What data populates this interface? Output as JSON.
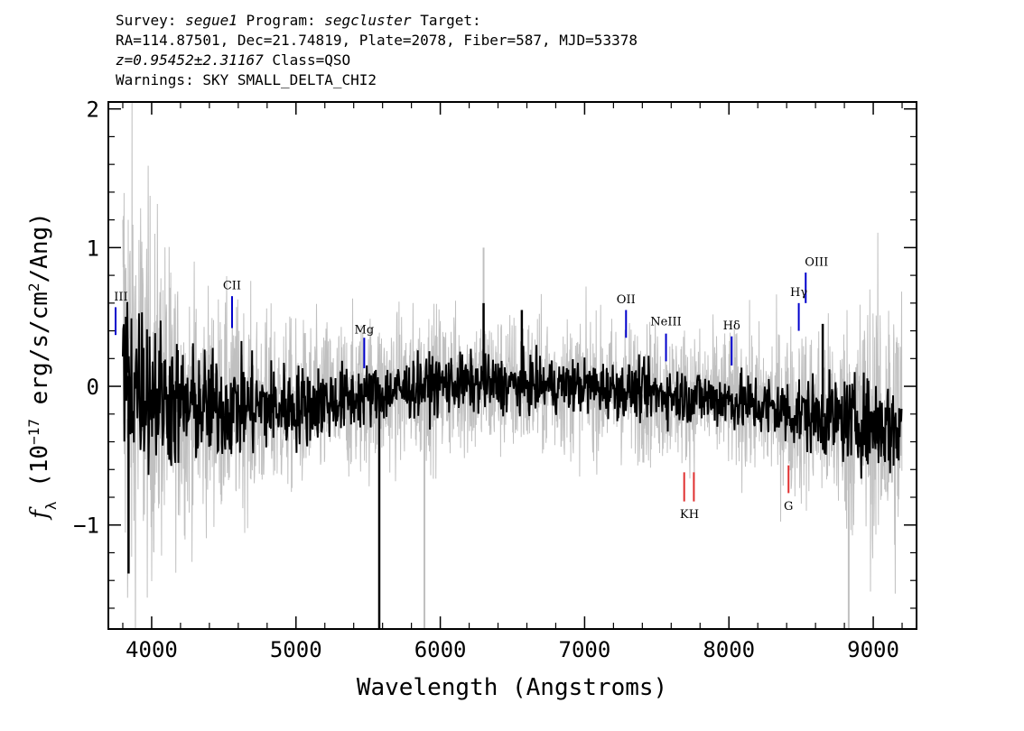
{
  "header": {
    "survey_label": "Survey:",
    "survey": "segue1",
    "program_label": "Program:",
    "program": "segcluster",
    "target_label": "Target:",
    "coords": "RA=114.87501, Dec=21.74819, Plate=2078, Fiber=587, MJD=53378",
    "redshift": "z=0.95452±2.31167",
    "class_text": "Class=QSO",
    "warnings": "Warnings: SKY SMALL_DELTA_CHI2"
  },
  "chart_data": {
    "type": "line",
    "xlabel": "Wavelength (Angstroms)",
    "ylabel": "f_λ (10^-17 erg/s/cm^2/Ang)",
    "xlim": [
      3700,
      9300
    ],
    "ylim": [
      -1.75,
      2.05
    ],
    "x_ticks": [
      4000,
      5000,
      6000,
      7000,
      8000,
      9000
    ],
    "y_ticks": [
      -1,
      0,
      1,
      2
    ],
    "y_tick_labels": [
      "−1",
      "0",
      "1",
      "2"
    ],
    "data_range": [
      3800,
      9200
    ],
    "series": [
      {
        "role": "flux",
        "color": "#000000",
        "anchors": [
          [
            3800,
            0.1
          ],
          [
            4200,
            -0.15
          ],
          [
            5000,
            -0.15
          ],
          [
            6000,
            0.02
          ],
          [
            7000,
            0.0
          ],
          [
            8000,
            -0.1
          ],
          [
            8500,
            -0.2
          ],
          [
            9200,
            -0.3
          ]
        ],
        "noise_sigma": [
          [
            3800,
            0.45
          ],
          [
            4300,
            0.28
          ],
          [
            5500,
            0.15
          ],
          [
            6800,
            0.13
          ],
          [
            8000,
            0.14
          ],
          [
            8800,
            0.2
          ],
          [
            9200,
            0.25
          ]
        ],
        "spikes": [
          [
            3840,
            -1.35
          ],
          [
            5577,
            -1.75
          ],
          [
            6300,
            0.6
          ],
          [
            6565,
            0.55
          ],
          [
            8650,
            0.45
          ]
        ]
      },
      {
        "role": "error",
        "color": "#c0c0c0",
        "sigma_envelope": [
          [
            3800,
            2.2
          ],
          [
            3900,
            1.6
          ],
          [
            4200,
            0.9
          ],
          [
            5000,
            0.6
          ],
          [
            6000,
            0.55
          ],
          [
            7000,
            0.5
          ],
          [
            8000,
            0.5
          ],
          [
            8700,
            0.7
          ],
          [
            9200,
            1.2
          ]
        ],
        "spikes": [
          [
            5577,
            -1.75
          ],
          [
            5890,
            -1.75
          ],
          [
            6300,
            1.0
          ],
          [
            8830,
            -1.75
          ]
        ]
      }
    ],
    "emission_lines": [
      {
        "label": "III",
        "wavelength": 3750,
        "y1": 0.37,
        "y2": 0.57,
        "label_y": 0.62,
        "label_dx": 6
      },
      {
        "label": "CII",
        "wavelength": 4557,
        "y1": 0.42,
        "y2": 0.65,
        "label_y": 0.7,
        "label_dx": 0
      },
      {
        "label": "Mg",
        "wavelength": 5473,
        "y1": 0.13,
        "y2": 0.35,
        "label_y": 0.38,
        "label_dx": 0
      },
      {
        "label": "OII",
        "wavelength": 7287,
        "y1": 0.35,
        "y2": 0.55,
        "label_y": 0.6,
        "label_dx": 0
      },
      {
        "label": "NeIII",
        "wavelength": 7564,
        "y1": 0.18,
        "y2": 0.38,
        "label_y": 0.44,
        "label_dx": 0
      },
      {
        "label": "Hδ",
        "wavelength": 8019,
        "y1": 0.15,
        "y2": 0.36,
        "label_y": 0.41,
        "label_dx": 0
      },
      {
        "label": "Hγ",
        "wavelength": 8484,
        "y1": 0.4,
        "y2": 0.6,
        "label_y": 0.65,
        "label_dx": 0
      },
      {
        "label": "OIII",
        "wavelength": 8532,
        "y1": 0.6,
        "y2": 0.82,
        "label_y": 0.87,
        "label_dx": 12
      }
    ],
    "absorption_lines": [
      {
        "label": "K",
        "wavelength": 7690,
        "y1": -0.62,
        "y2": -0.83,
        "label_y": -0.95
      },
      {
        "label": "H",
        "wavelength": 7757,
        "y1": -0.62,
        "y2": -0.83,
        "label_y": -0.95
      },
      {
        "label": "G",
        "wavelength": 8413,
        "y1": -0.57,
        "y2": -0.77,
        "label_y": -0.89
      }
    ],
    "emission_color": "#0000cc",
    "absorption_color": "#e03030"
  }
}
